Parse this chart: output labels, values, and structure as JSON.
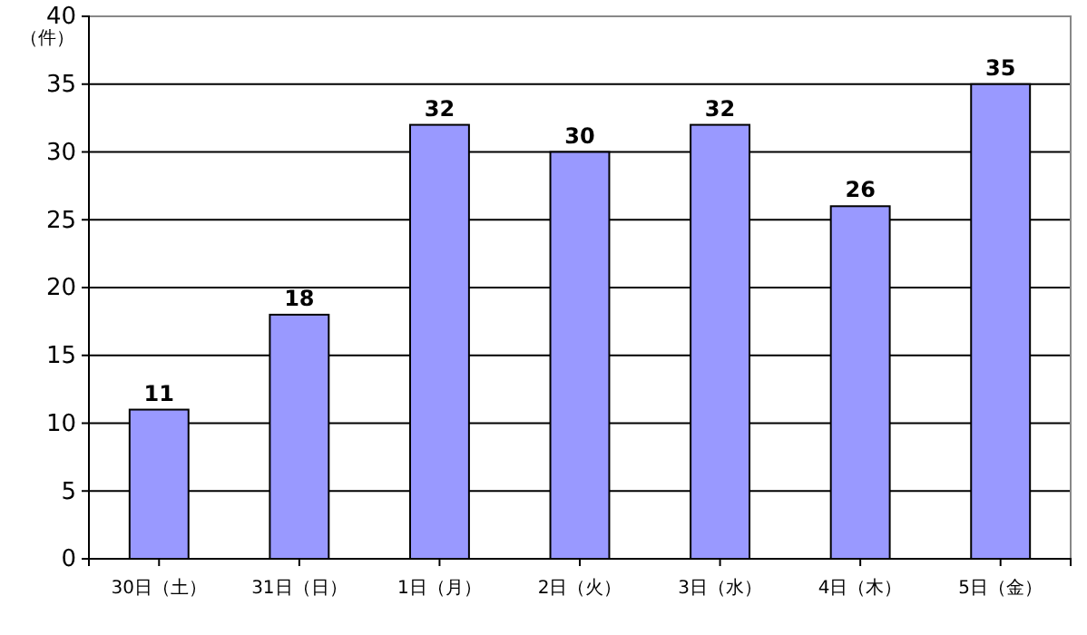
{
  "chart_data": {
    "type": "bar",
    "ylabel": "（件）",
    "categories": [
      "30日（土）",
      "31日（日）",
      "1日（月）",
      "2日（火）",
      "3日（水）",
      "4日（木）",
      "5日（金）"
    ],
    "values": [
      11,
      18,
      32,
      30,
      32,
      26,
      35
    ],
    "color": "#9999ff",
    "ylim": [
      0,
      40
    ],
    "yticks": [
      0,
      5,
      10,
      15,
      20,
      25,
      30,
      35,
      40
    ],
    "grid": "y",
    "data_labels": true
  }
}
